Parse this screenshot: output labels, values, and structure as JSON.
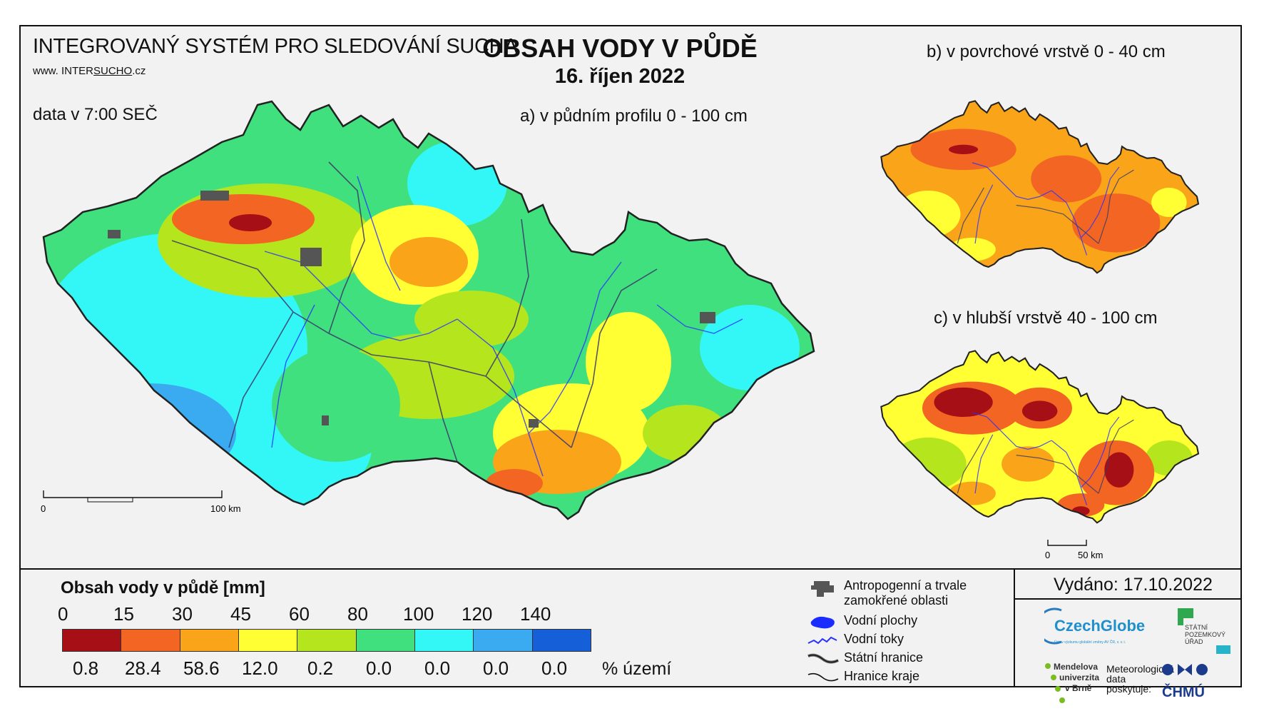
{
  "header": {
    "system_title": "INTEGROVANÝ SYSTÉM PRO SLEDOVÁNÍ SUCHA",
    "website_prefix": "www. INTER",
    "website_highlight": "SUCHO",
    "website_suffix": ".cz",
    "data_time": "data v 7:00 SEČ",
    "map_title": "OBSAH VODY V PŮDĚ",
    "map_date": "16. říjen 2022"
  },
  "maps": {
    "a_title": "a) v půdním profilu 0 - 100 cm",
    "b_title": "b) v povrchové vrstvě 0 - 40 cm",
    "c_title": "c) v hlubší vrstvě 40 - 100 cm",
    "scale_main": {
      "start": "0",
      "end": "100 km"
    },
    "scale_small": {
      "start": "0",
      "end": "50 km"
    }
  },
  "legend": {
    "title": "Obsah vody v půdě  [mm]",
    "breaks": [
      "0",
      "15",
      "30",
      "45",
      "60",
      "80",
      "100",
      "120",
      "140"
    ],
    "colors": [
      "#a50f15",
      "#f26522",
      "#faa41a",
      "#ffff33",
      "#b5e61d",
      "#41e07e",
      "#33f7f7",
      "#3aabf0",
      "#1560d8"
    ],
    "percent_values": [
      "0.8",
      "28.4",
      "58.6",
      "12.0",
      "0.2",
      "0.0",
      "0.0",
      "0.0",
      "0.0"
    ],
    "percent_unit": "% území"
  },
  "symbols": {
    "anthropogenic": "Antropogenní a trvale zamokřené oblasti",
    "water_bodies": "Vodní plochy",
    "streams": "Vodní toky",
    "state_border": "Státní hranice",
    "region_border": "Hranice kraje"
  },
  "footer": {
    "issued": "Vydáno: 17.10.2022",
    "czechglobe": "CzechGlobe",
    "czechglobe_sub": "Ústav výzkumu globální změny AV ČR, v. v. i.",
    "spu": [
      "STÁTNÍ",
      "POZEMKOVÝ",
      "ÚŘAD"
    ],
    "mendelu": [
      "Mendelova",
      "univerzita",
      "v Brně"
    ],
    "chmu_text": [
      "Meteorologická",
      "data",
      "poskytuje:"
    ],
    "chmu": "ČHMÚ"
  }
}
